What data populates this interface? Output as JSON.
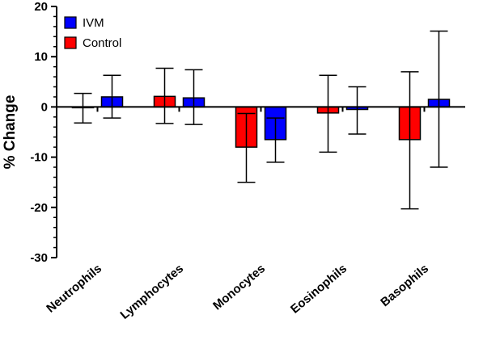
{
  "chart_data": {
    "type": "bar",
    "categories": [
      "Neutrophils",
      "Lymphocytes",
      "Monocytes",
      "Eosinophils",
      "Basophils"
    ],
    "series": [
      {
        "name": "Control",
        "color": "#ff0000",
        "values": [
          0.0,
          2.1,
          -8.0,
          -1.2,
          -6.5
        ],
        "error_upper": [
          2.7,
          7.7,
          -1.3,
          6.3,
          7.0
        ],
        "error_lower": [
          -3.2,
          -3.3,
          -15.0,
          -9.0,
          -20.3
        ]
      },
      {
        "name": "IVM",
        "color": "#0000ff",
        "values": [
          2.0,
          1.8,
          -6.5,
          -0.5,
          1.5
        ],
        "error_upper": [
          6.3,
          7.4,
          -2.2,
          4.0,
          15.1
        ],
        "error_lower": [
          -2.2,
          -3.5,
          -11.0,
          -5.4,
          -12.0
        ]
      }
    ],
    "legend_order": [
      "IVM",
      "Control"
    ],
    "legend_position": "top-left",
    "ylabel": "% Change",
    "xlabel": "",
    "title": "",
    "ylim": [
      -30,
      20
    ],
    "yticks": [
      -30,
      -20,
      -10,
      0,
      10,
      20
    ],
    "ytick_labels": [
      "-30",
      "-20",
      "-10",
      "0",
      "10",
      "20"
    ],
    "minor_ticks_per_major": 4,
    "grid": false
  }
}
